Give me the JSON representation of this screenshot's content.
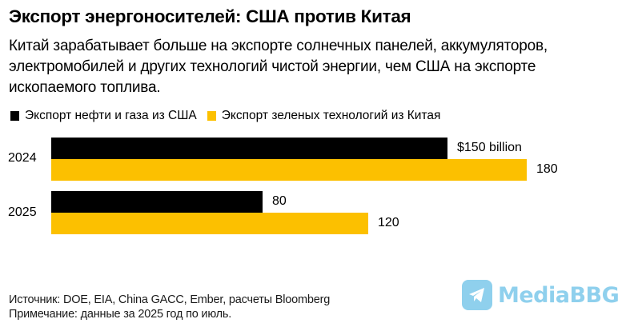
{
  "header": {
    "title": "Экспорт энергоносителей: США против Китая",
    "subtitle_lines": [
      "Китай зарабатывает больше на экспорте солнечных панелей, аккумуляторов,",
      "электромобилей и других технологий чистой энергии, чем США на экспорте",
      "ископаемого топлива."
    ]
  },
  "legend": [
    {
      "label": "Экспорт нефти и газа из США",
      "color": "#000000"
    },
    {
      "label": "Экспорт зеленых технологий из Китая",
      "color": "#fcc000"
    }
  ],
  "bars": {
    "y2024": {
      "category": "2024",
      "us": {
        "value": 150,
        "label": "$150 billion"
      },
      "china": {
        "value": 180,
        "label": "180"
      }
    },
    "y2025": {
      "category": "2025",
      "us": {
        "value": 80,
        "label": "80"
      },
      "china": {
        "value": 120,
        "label": "120"
      }
    }
  },
  "footer": {
    "source": "Источник: DOE, EIA, China GACC, Ember, расчеты Bloomberg",
    "note": "Примечание: данные за 2025 год по июль."
  },
  "watermark": {
    "text": "MediaBBG",
    "icon": "telegram-icon",
    "color": "#7cc8ea"
  },
  "chart_data": {
    "type": "bar",
    "orientation": "horizontal",
    "title": "Экспорт энергоносителей: США против Китая",
    "subtitle": "Китай зарабатывает больше на экспорте солнечных панелей, аккумуляторов, электромобилей и других технологий чистой энергии, чем США на экспорте ископаемого топлива.",
    "categories": [
      "2024",
      "2025"
    ],
    "series": [
      {
        "name": "Экспорт нефти и газа из США",
        "color": "#000000",
        "values": [
          150,
          80
        ]
      },
      {
        "name": "Экспорт зеленых технологий из Китая",
        "color": "#fcc000",
        "values": [
          180,
          120
        ]
      }
    ],
    "data_labels": [
      [
        "$150 billion",
        "80"
      ],
      [
        "180",
        "120"
      ]
    ],
    "units": "billion USD",
    "xlabel": "",
    "ylabel": "",
    "grid": false,
    "legend_position": "top-left",
    "notes": [
      "Источник: DOE, EIA, China GACC, Ember, расчеты Bloomberg",
      "Примечание: данные за 2025 год по июль."
    ]
  }
}
